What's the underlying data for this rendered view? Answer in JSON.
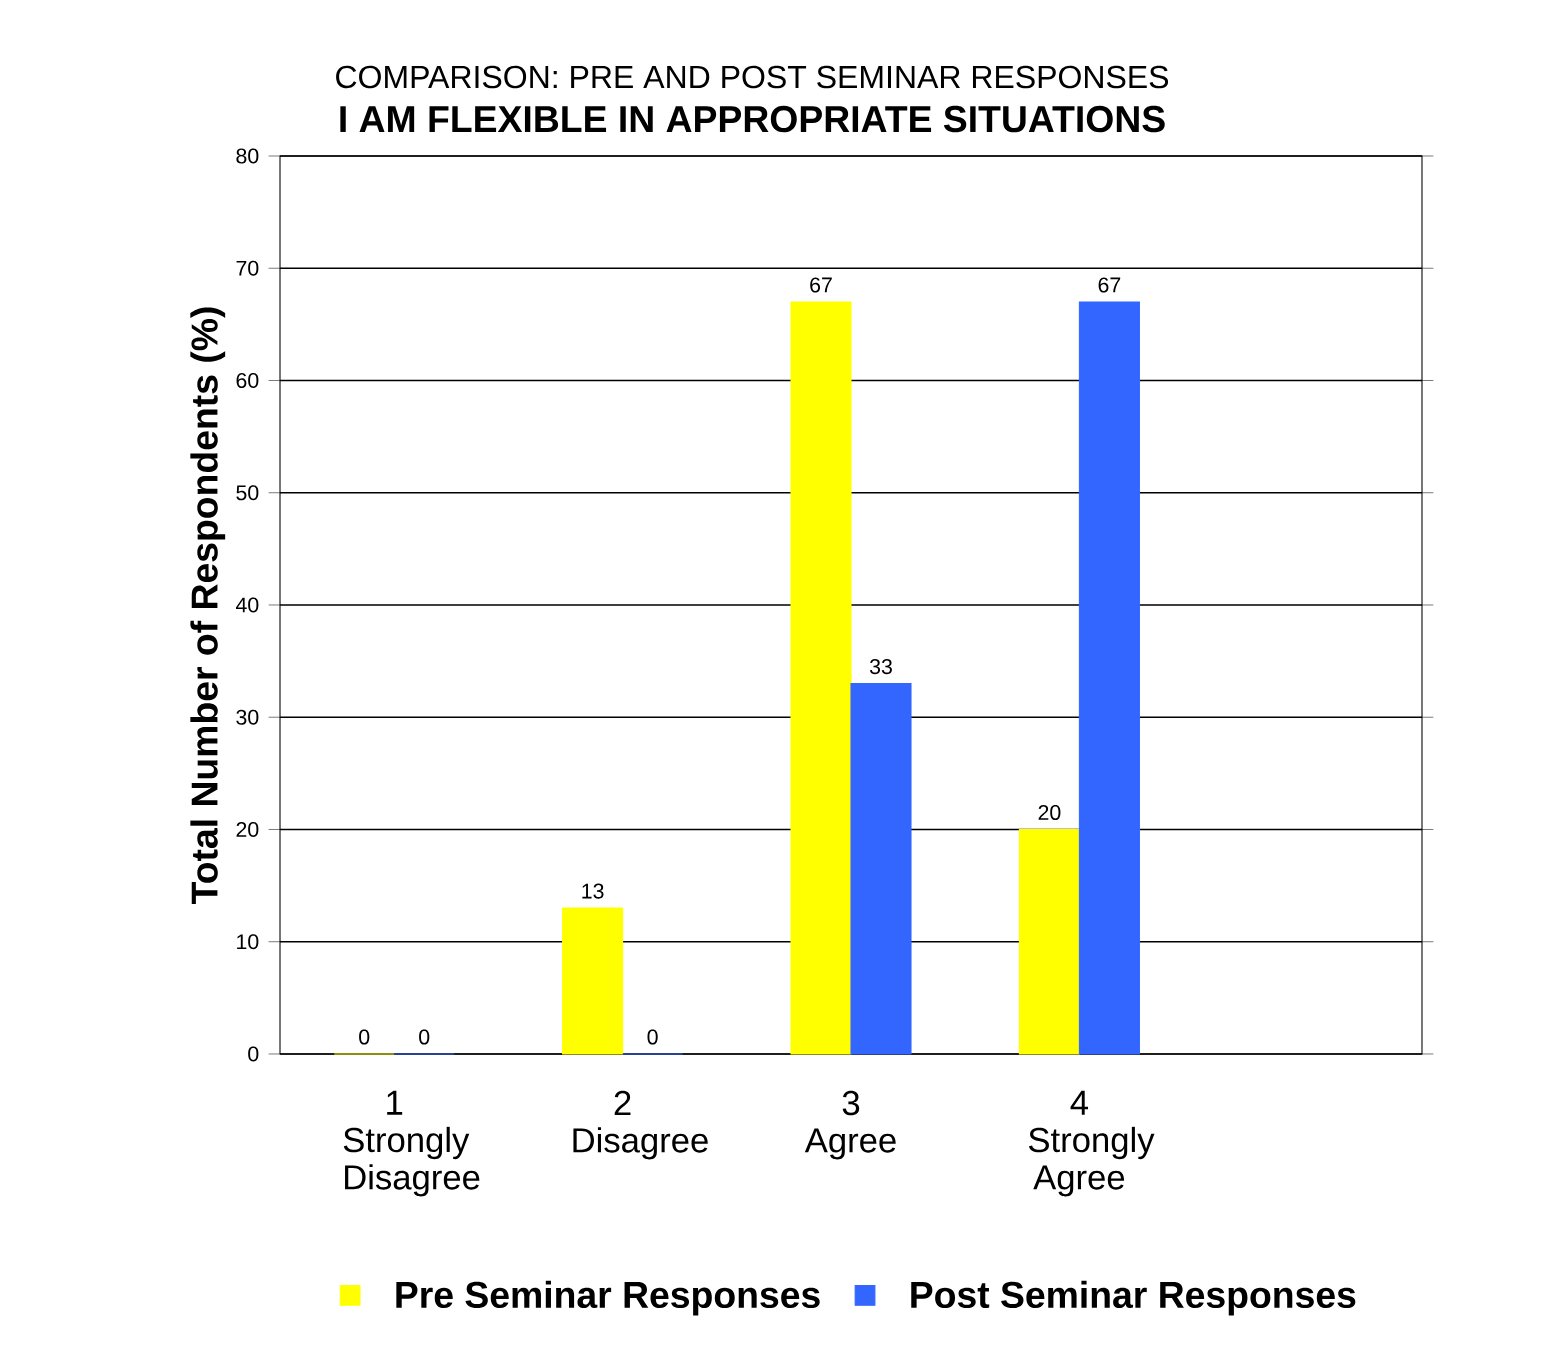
{
  "chart_data": {
    "type": "bar",
    "title": "COMPARISON: PRE AND POST SEMINAR RESPONSES",
    "subtitle": "I AM FLEXIBLE IN APPROPRIATE SITUATIONS",
    "ylabel": "Total Number of Respondents (%)",
    "categories": [
      "1 Strongly Disagree",
      "2 Disagree",
      "3 Agree",
      "4 Strongly Agree",
      null
    ],
    "series": [
      {
        "name": "Pre Seminar Responses",
        "color": "#ffff00",
        "values": [
          0,
          13,
          67,
          20,
          null
        ]
      },
      {
        "name": "Post Seminar Responses",
        "color": "#3366ff",
        "values": [
          0,
          0,
          33,
          67,
          null
        ]
      }
    ],
    "ylim": [
      0,
      80
    ],
    "yticks": [
      0,
      10,
      20,
      30,
      40,
      50,
      60,
      70,
      80
    ],
    "grid": "y",
    "legend": "bottom",
    "data_labels": true
  }
}
